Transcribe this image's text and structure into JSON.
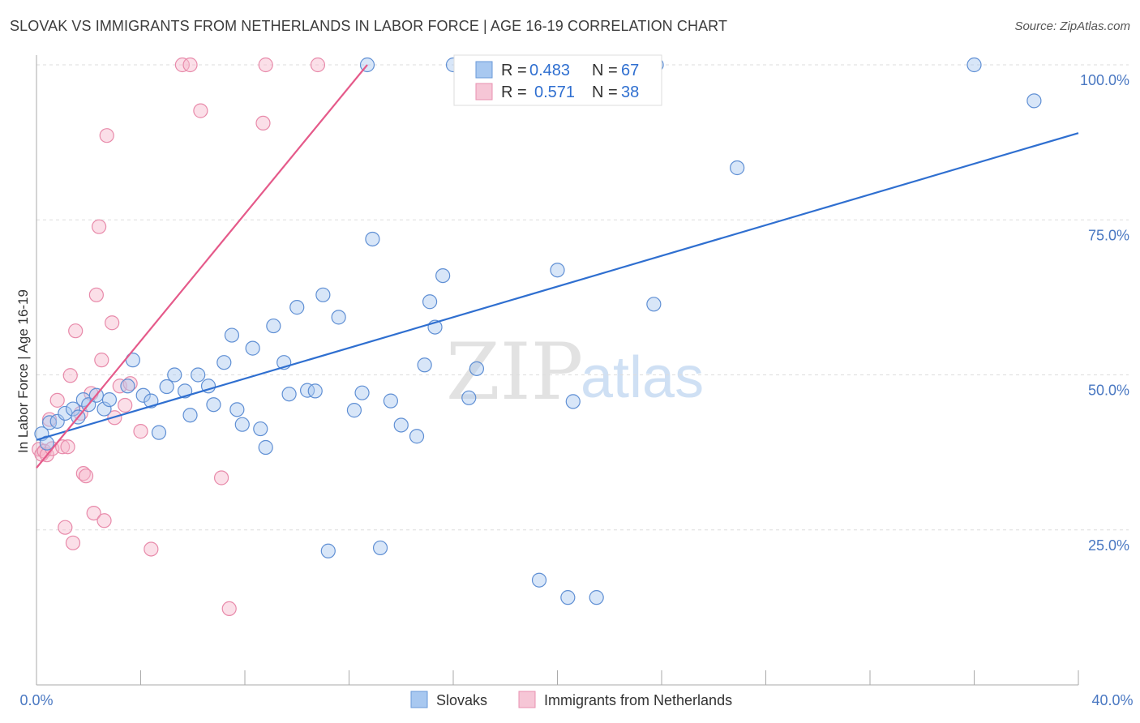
{
  "title": "SLOVAK VS IMMIGRANTS FROM NETHERLANDS IN LABOR FORCE | AGE 16-19 CORRELATION CHART",
  "source": "Source: ZipAtlas.com",
  "watermark": {
    "zip": "ZIP",
    "atlas": "atlas"
  },
  "colors": {
    "blue": "#2f6fd0",
    "blue_fill": "#a8c8f0",
    "pink": "#e55a8a",
    "pink_fill": "#f6b8cc",
    "grid": "#dddddd",
    "axis": "#999999"
  },
  "legend_top": [
    {
      "r_label": "R =",
      "r_value": "0.483",
      "n_label": "N =",
      "n_value": "67"
    },
    {
      "r_label": "R =",
      "r_value": "0.571",
      "n_label": "N =",
      "n_value": "38"
    }
  ],
  "legend_bottom": [
    "Slovaks",
    "Immigrants from Netherlands"
  ],
  "chart_data": {
    "type": "scatter",
    "xlabel": "",
    "ylabel": "In Labor Force | Age 16-19",
    "xlim": [
      0,
      40
    ],
    "ylim": [
      0,
      103
    ],
    "x_tick_labels": {
      "min": "0.0%",
      "max": "40.0%"
    },
    "y_ticks": [
      {
        "value": 25,
        "label": "25.0%"
      },
      {
        "value": 50,
        "label": "50.0%"
      },
      {
        "value": 75,
        "label": "75.0%"
      },
      {
        "value": 100,
        "label": "100.0%"
      }
    ],
    "grid": true,
    "legend_position": "top-center",
    "series": [
      {
        "name": "Slovaks",
        "trend": {
          "x1": 0,
          "y1": 39.5,
          "x2": 40,
          "y2": 89
        },
        "points": [
          [
            0.2,
            40.5
          ],
          [
            0.4,
            39.0
          ],
          [
            0.5,
            42.3
          ],
          [
            0.8,
            42.5
          ],
          [
            1.1,
            43.8
          ],
          [
            1.4,
            44.5
          ],
          [
            1.6,
            43.2
          ],
          [
            1.8,
            46.0
          ],
          [
            2.0,
            45.2
          ],
          [
            2.3,
            46.7
          ],
          [
            2.6,
            44.5
          ],
          [
            2.8,
            46.0
          ],
          [
            3.5,
            48.2
          ],
          [
            3.7,
            52.4
          ],
          [
            4.1,
            46.7
          ],
          [
            4.4,
            45.8
          ],
          [
            4.7,
            40.7
          ],
          [
            5.0,
            48.1
          ],
          [
            5.3,
            50.0
          ],
          [
            5.7,
            47.4
          ],
          [
            5.9,
            43.5
          ],
          [
            6.2,
            50.0
          ],
          [
            6.6,
            48.2
          ],
          [
            6.8,
            45.2
          ],
          [
            7.2,
            52.0
          ],
          [
            7.5,
            56.4
          ],
          [
            7.7,
            44.4
          ],
          [
            7.9,
            42.0
          ],
          [
            8.3,
            54.3
          ],
          [
            8.6,
            41.3
          ],
          [
            8.8,
            38.3
          ],
          [
            9.1,
            57.9
          ],
          [
            9.5,
            52.0
          ],
          [
            9.7,
            46.9
          ],
          [
            10.0,
            60.9
          ],
          [
            10.4,
            47.5
          ],
          [
            10.7,
            47.4
          ],
          [
            11.0,
            62.9
          ],
          [
            11.6,
            59.3
          ],
          [
            12.2,
            44.3
          ],
          [
            12.5,
            47.1
          ],
          [
            12.7,
            100.0
          ],
          [
            12.9,
            71.9
          ],
          [
            13.2,
            22.1
          ],
          [
            13.6,
            45.8
          ],
          [
            14.0,
            41.9
          ],
          [
            14.6,
            40.1
          ],
          [
            14.9,
            51.6
          ],
          [
            15.1,
            61.8
          ],
          [
            15.3,
            57.7
          ],
          [
            15.6,
            66.0
          ],
          [
            16.0,
            100.0
          ],
          [
            16.3,
            100.0
          ],
          [
            16.6,
            46.3
          ],
          [
            16.9,
            51.0
          ],
          [
            19.3,
            16.9
          ],
          [
            20.0,
            66.9
          ],
          [
            20.4,
            14.1
          ],
          [
            20.6,
            45.7
          ],
          [
            21.2,
            100.0
          ],
          [
            21.5,
            14.1
          ],
          [
            23.7,
            61.4
          ],
          [
            23.8,
            100.0
          ],
          [
            26.9,
            83.4
          ],
          [
            11.2,
            21.6
          ],
          [
            36.0,
            100.0
          ],
          [
            38.3,
            94.2
          ]
        ]
      },
      {
        "name": "Immigrants from Netherlands",
        "trend": {
          "x1": 0,
          "y1": 35.0,
          "x2": 12.7,
          "y2": 100.0
        },
        "points": [
          [
            0.1,
            38.0
          ],
          [
            0.2,
            37.2
          ],
          [
            0.3,
            37.7
          ],
          [
            0.4,
            37.1
          ],
          [
            0.5,
            42.8
          ],
          [
            0.6,
            38.1
          ],
          [
            0.8,
            45.9
          ],
          [
            1.0,
            38.4
          ],
          [
            1.1,
            25.4
          ],
          [
            1.2,
            38.4
          ],
          [
            1.3,
            49.9
          ],
          [
            1.4,
            22.9
          ],
          [
            1.5,
            57.1
          ],
          [
            1.7,
            43.8
          ],
          [
            1.8,
            34.1
          ],
          [
            1.9,
            33.7
          ],
          [
            2.1,
            47.0
          ],
          [
            2.2,
            27.7
          ],
          [
            2.3,
            62.9
          ],
          [
            2.4,
            73.9
          ],
          [
            2.5,
            52.4
          ],
          [
            2.6,
            26.5
          ],
          [
            2.7,
            88.6
          ],
          [
            2.9,
            58.4
          ],
          [
            3.0,
            43.1
          ],
          [
            3.2,
            48.2
          ],
          [
            3.4,
            45.1
          ],
          [
            3.6,
            48.6
          ],
          [
            4.0,
            40.9
          ],
          [
            4.4,
            21.9
          ],
          [
            5.6,
            100.0
          ],
          [
            5.9,
            100.0
          ],
          [
            6.3,
            92.6
          ],
          [
            7.1,
            33.4
          ],
          [
            7.4,
            12.3
          ],
          [
            8.7,
            90.6
          ],
          [
            8.8,
            100.0
          ],
          [
            10.8,
            100.0
          ]
        ]
      }
    ]
  }
}
